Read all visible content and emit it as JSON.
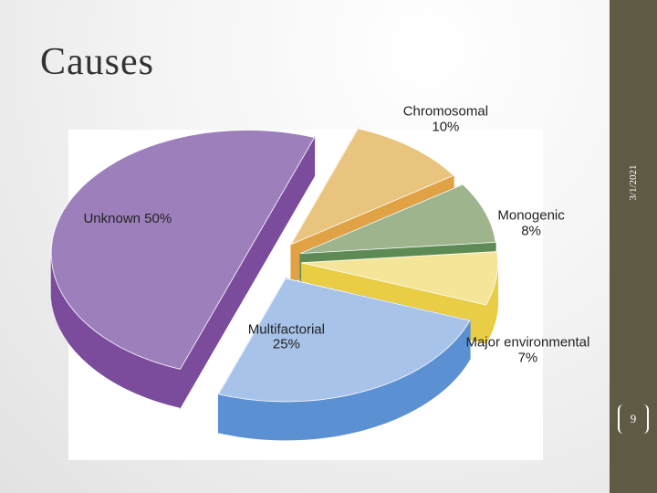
{
  "slide": {
    "title": "Causes",
    "date": "3/1/2021",
    "page_number": 9
  },
  "chart_data": {
    "type": "pie",
    "categories": [
      "Chromosomal",
      "Monogenic",
      "Major environmental",
      "Multifactorial",
      "Unknown"
    ],
    "values": [
      10,
      8,
      7,
      25,
      50
    ],
    "value_labels": [
      "10%",
      "8%",
      "7%",
      "25%",
      "50%"
    ],
    "colors": [
      "#e9c47e",
      "#9db48c",
      "#f4e598",
      "#a8c3e9",
      "#9d80bb"
    ],
    "side_colors": [
      "#e0a245",
      "#5e8a55",
      "#e8cd45",
      "#5b90d2",
      "#7b4b9c"
    ],
    "exploded": true,
    "three_d": true
  }
}
